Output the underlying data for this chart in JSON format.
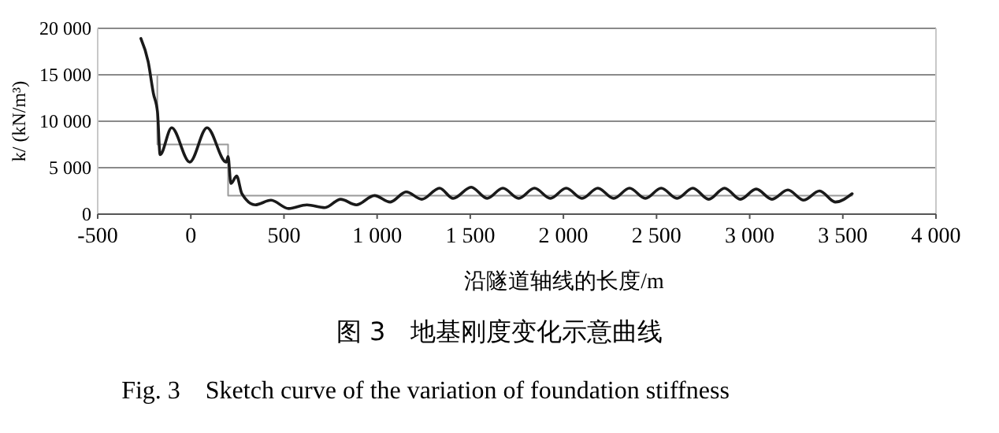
{
  "chart_data": {
    "type": "line",
    "title": "图 3　地基刚度变化示意曲线",
    "subtitle": "Fig. 3　Sketch curve of the variation of foundation stiffness",
    "xlabel": "沿隧道轴线的长度/m",
    "ylabel": "k/ (kN/m³)",
    "xlim": [
      -500,
      4000
    ],
    "xticks": [
      {
        "value": -500,
        "label": "-500"
      },
      0,
      500,
      {
        "value": 1000,
        "label": "1 000"
      },
      {
        "value": 1500,
        "label": "1 500"
      },
      {
        "value": 2000,
        "label": "2 000"
      },
      {
        "value": 2500,
        "label": "2 500"
      },
      {
        "value": 3000,
        "label": "3 000"
      },
      {
        "value": 3500,
        "label": "3 500"
      },
      {
        "value": 4000,
        "label": "4 000"
      }
    ],
    "ylim": [
      0,
      20000
    ],
    "yticks": [
      0,
      {
        "value": 5000,
        "label": "5 000"
      },
      {
        "value": 10000,
        "label": "10 000"
      },
      {
        "value": 15000,
        "label": "15 000"
      },
      {
        "value": 20000,
        "label": "20 000"
      }
    ],
    "grid": "y",
    "marker": "none",
    "line_style": "solid",
    "series": [
      {
        "color": "#9a9a9a",
        "x": [
          -250,
          -180,
          -180,
          200,
          200,
          3550
        ],
        "values": [
          15000,
          15000,
          7500,
          7500,
          2000,
          2000
        ]
      },
      {
        "color": "#1a1a1a",
        "x": [
          -268,
          -229,
          -201,
          -179,
          -165,
          -103,
          -6,
          87,
          190,
          200,
          215,
          246,
          274,
          346,
          430,
          525,
          623,
          720,
          804,
          888,
          986,
          1070,
          1156,
          1240,
          1335,
          1408,
          1505,
          1590,
          1675,
          1760,
          1845,
          1930,
          2015,
          2100,
          2185,
          2270,
          2355,
          2440,
          2525,
          2610,
          2695,
          2780,
          2865,
          2950,
          3035,
          3120,
          3205,
          3290,
          3375,
          3460,
          3550
        ],
        "values": [
          18900,
          16400,
          13000,
          11000,
          6400,
          9300,
          5600,
          9300,
          5600,
          6200,
          3300,
          4100,
          2200,
          1000,
          1500,
          600,
          1000,
          700,
          1600,
          1000,
          2000,
          1300,
          2400,
          1600,
          2800,
          1700,
          2900,
          1700,
          2800,
          1700,
          2800,
          1700,
          2800,
          1700,
          2800,
          1700,
          2800,
          1700,
          2800,
          1700,
          2800,
          1600,
          2800,
          1600,
          2700,
          1600,
          2600,
          1500,
          2500,
          1300,
          2200
        ]
      }
    ]
  }
}
